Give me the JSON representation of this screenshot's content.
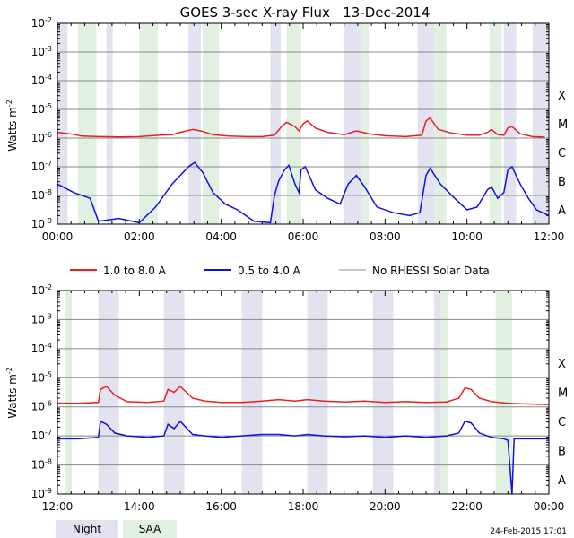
{
  "title": "GOES 3-sec X-ray Flux   13-Dec-2014",
  "footer_date": "24-Feb-2015 17:01",
  "ylabel": "Watts m",
  "ylabel_sup": "-2",
  "colors": {
    "long": "#e8201c",
    "short": "#1010e0",
    "rhessi": "#909090",
    "night": "#e2e2f0",
    "saa": "#e2f0e2"
  },
  "legend": [
    {
      "label": "1.0 to 8.0 A",
      "color": "#e8201c"
    },
    {
      "label": "0.5 to 4.0 A",
      "color": "#1010e0"
    },
    {
      "label": "No RHESSI Solar Data",
      "color": "#909090"
    }
  ],
  "region_legend": [
    {
      "label": "Night",
      "color": "#e2e2f0"
    },
    {
      "label": "SAA",
      "color": "#e2f0e2"
    }
  ],
  "y_tick_exponents": [
    -9,
    -8,
    -7,
    -6,
    -5,
    -4,
    -3,
    -2
  ],
  "flare_classes": [
    {
      "label": "A",
      "exp": -8.5
    },
    {
      "label": "B",
      "exp": -7.5
    },
    {
      "label": "C",
      "exp": -6.5
    },
    {
      "label": "M",
      "exp": -5.5
    },
    {
      "label": "X",
      "exp": -4.5
    }
  ],
  "chart_data": [
    {
      "type": "line",
      "panel": "top",
      "xlim": [
        0,
        12
      ],
      "ylim_exp": [
        -9,
        -2
      ],
      "x_ticks": [
        "00:00",
        "02:00",
        "04:00",
        "06:00",
        "08:00",
        "10:00",
        "12:00"
      ],
      "night": [
        [
          0.0,
          0.25
        ],
        [
          1.2,
          1.35
        ],
        [
          3.2,
          3.5
        ],
        [
          5.2,
          5.45
        ],
        [
          7.0,
          7.4
        ],
        [
          8.8,
          9.2
        ],
        [
          10.9,
          11.2
        ],
        [
          11.6,
          12.0
        ]
      ],
      "saa": [
        [
          0.5,
          0.95
        ],
        [
          2.0,
          2.45
        ],
        [
          3.55,
          3.95
        ],
        [
          5.6,
          5.95
        ],
        [
          7.4,
          7.6
        ],
        [
          9.2,
          9.5
        ],
        [
          10.55,
          10.85
        ]
      ],
      "long_series": [
        [
          0,
          -5.8
        ],
        [
          0.3,
          -5.85
        ],
        [
          0.6,
          -5.93
        ],
        [
          1.0,
          -5.95
        ],
        [
          1.5,
          -5.96
        ],
        [
          2.0,
          -5.95
        ],
        [
          2.5,
          -5.9
        ],
        [
          2.8,
          -5.88
        ],
        [
          3.0,
          -5.8
        ],
        [
          3.3,
          -5.7
        ],
        [
          3.5,
          -5.75
        ],
        [
          3.8,
          -5.88
        ],
        [
          4.2,
          -5.93
        ],
        [
          4.6,
          -5.95
        ],
        [
          5.0,
          -5.95
        ],
        [
          5.3,
          -5.9
        ],
        [
          5.5,
          -5.55
        ],
        [
          5.6,
          -5.45
        ],
        [
          5.8,
          -5.6
        ],
        [
          5.9,
          -5.75
        ],
        [
          6.0,
          -5.5
        ],
        [
          6.1,
          -5.4
        ],
        [
          6.3,
          -5.65
        ],
        [
          6.6,
          -5.8
        ],
        [
          7.0,
          -5.88
        ],
        [
          7.3,
          -5.75
        ],
        [
          7.6,
          -5.85
        ],
        [
          8.0,
          -5.92
        ],
        [
          8.5,
          -5.95
        ],
        [
          8.9,
          -5.9
        ],
        [
          9.0,
          -5.4
        ],
        [
          9.1,
          -5.3
        ],
        [
          9.3,
          -5.7
        ],
        [
          9.6,
          -5.82
        ],
        [
          10.0,
          -5.9
        ],
        [
          10.3,
          -5.9
        ],
        [
          10.5,
          -5.8
        ],
        [
          10.6,
          -5.7
        ],
        [
          10.75,
          -5.88
        ],
        [
          10.9,
          -5.9
        ],
        [
          11.0,
          -5.65
        ],
        [
          11.1,
          -5.6
        ],
        [
          11.3,
          -5.85
        ],
        [
          11.6,
          -5.95
        ],
        [
          11.9,
          -5.97
        ]
      ],
      "short_series": [
        [
          0,
          -7.6
        ],
        [
          0.4,
          -7.9
        ],
        [
          0.8,
          -8.1
        ],
        [
          1.0,
          -8.9
        ],
        [
          1.5,
          -8.8
        ],
        [
          2.0,
          -8.95
        ],
        [
          2.4,
          -8.4
        ],
        [
          2.6,
          -8.0
        ],
        [
          2.8,
          -7.6
        ],
        [
          3.0,
          -7.3
        ],
        [
          3.2,
          -7.0
        ],
        [
          3.35,
          -6.85
        ],
        [
          3.55,
          -7.2
        ],
        [
          3.8,
          -7.9
        ],
        [
          4.1,
          -8.3
        ],
        [
          4.4,
          -8.5
        ],
        [
          4.8,
          -8.9
        ],
        [
          5.2,
          -8.95
        ],
        [
          5.3,
          -8.0
        ],
        [
          5.4,
          -7.5
        ],
        [
          5.55,
          -7.1
        ],
        [
          5.65,
          -6.95
        ],
        [
          5.8,
          -7.6
        ],
        [
          5.9,
          -7.9
        ],
        [
          5.95,
          -7.1
        ],
        [
          6.05,
          -7.0
        ],
        [
          6.3,
          -7.8
        ],
        [
          6.6,
          -8.1
        ],
        [
          6.9,
          -8.3
        ],
        [
          7.1,
          -7.6
        ],
        [
          7.3,
          -7.3
        ],
        [
          7.5,
          -7.7
        ],
        [
          7.8,
          -8.4
        ],
        [
          8.2,
          -8.6
        ],
        [
          8.6,
          -8.7
        ],
        [
          8.85,
          -8.6
        ],
        [
          9.0,
          -7.3
        ],
        [
          9.1,
          -7.05
        ],
        [
          9.35,
          -7.6
        ],
        [
          9.7,
          -8.1
        ],
        [
          10.0,
          -8.5
        ],
        [
          10.25,
          -8.4
        ],
        [
          10.5,
          -7.8
        ],
        [
          10.6,
          -7.7
        ],
        [
          10.75,
          -8.1
        ],
        [
          10.9,
          -7.9
        ],
        [
          11.0,
          -7.1
        ],
        [
          11.1,
          -7.0
        ],
        [
          11.3,
          -7.6
        ],
        [
          11.5,
          -8.1
        ],
        [
          11.7,
          -8.5
        ],
        [
          12.0,
          -8.7
        ]
      ]
    },
    {
      "type": "line",
      "panel": "bottom",
      "xlim": [
        12,
        24
      ],
      "ylim_exp": [
        -9,
        -2
      ],
      "x_ticks": [
        "12:00",
        "14:00",
        "16:00",
        "18:00",
        "20:00",
        "22:00",
        "00:00"
      ],
      "night": [
        [
          13.0,
          13.5
        ],
        [
          14.6,
          15.1
        ],
        [
          16.5,
          17.0
        ],
        [
          18.1,
          18.6
        ],
        [
          19.7,
          20.2
        ],
        [
          21.2,
          21.35
        ]
      ],
      "saa": [
        [
          12.2,
          12.35
        ],
        [
          21.35,
          21.55
        ],
        [
          22.7,
          23.1
        ]
      ],
      "long_series": [
        [
          12,
          -5.87
        ],
        [
          12.5,
          -5.88
        ],
        [
          13.0,
          -5.85
        ],
        [
          13.05,
          -5.4
        ],
        [
          13.2,
          -5.3
        ],
        [
          13.4,
          -5.6
        ],
        [
          13.7,
          -5.82
        ],
        [
          14.2,
          -5.85
        ],
        [
          14.6,
          -5.8
        ],
        [
          14.7,
          -5.4
        ],
        [
          14.85,
          -5.5
        ],
        [
          15.0,
          -5.3
        ],
        [
          15.3,
          -5.7
        ],
        [
          15.6,
          -5.8
        ],
        [
          16.0,
          -5.85
        ],
        [
          16.5,
          -5.85
        ],
        [
          17.0,
          -5.8
        ],
        [
          17.4,
          -5.75
        ],
        [
          17.8,
          -5.8
        ],
        [
          18.1,
          -5.75
        ],
        [
          18.5,
          -5.8
        ],
        [
          19.0,
          -5.83
        ],
        [
          19.5,
          -5.8
        ],
        [
          20.0,
          -5.85
        ],
        [
          20.5,
          -5.82
        ],
        [
          21.0,
          -5.85
        ],
        [
          21.5,
          -5.83
        ],
        [
          21.8,
          -5.7
        ],
        [
          21.95,
          -5.35
        ],
        [
          22.1,
          -5.4
        ],
        [
          22.3,
          -5.7
        ],
        [
          22.6,
          -5.82
        ],
        [
          23.0,
          -5.88
        ],
        [
          23.5,
          -5.9
        ],
        [
          24.0,
          -5.92
        ]
      ],
      "short_series": [
        [
          12,
          -7.1
        ],
        [
          12.5,
          -7.1
        ],
        [
          13.0,
          -7.05
        ],
        [
          13.05,
          -6.5
        ],
        [
          13.2,
          -6.6
        ],
        [
          13.4,
          -6.9
        ],
        [
          13.7,
          -7.0
        ],
        [
          14.2,
          -7.05
        ],
        [
          14.6,
          -7.0
        ],
        [
          14.7,
          -6.6
        ],
        [
          14.85,
          -6.75
        ],
        [
          15.0,
          -6.5
        ],
        [
          15.3,
          -6.95
        ],
        [
          15.6,
          -7.0
        ],
        [
          16.0,
          -7.05
        ],
        [
          16.5,
          -7.0
        ],
        [
          17.0,
          -6.95
        ],
        [
          17.4,
          -6.95
        ],
        [
          17.8,
          -7.0
        ],
        [
          18.1,
          -6.95
        ],
        [
          18.5,
          -7.0
        ],
        [
          19.0,
          -7.03
        ],
        [
          19.5,
          -7.0
        ],
        [
          20.0,
          -7.05
        ],
        [
          20.5,
          -7.0
        ],
        [
          21.0,
          -7.05
        ],
        [
          21.5,
          -7.0
        ],
        [
          21.8,
          -6.9
        ],
        [
          21.95,
          -6.5
        ],
        [
          22.1,
          -6.55
        ],
        [
          22.3,
          -6.9
        ],
        [
          22.6,
          -7.05
        ],
        [
          22.9,
          -7.1
        ],
        [
          23.0,
          -7.15
        ],
        [
          23.1,
          -9.0
        ],
        [
          23.15,
          -7.1
        ],
        [
          23.5,
          -7.1
        ],
        [
          24.0,
          -7.1
        ]
      ]
    }
  ]
}
